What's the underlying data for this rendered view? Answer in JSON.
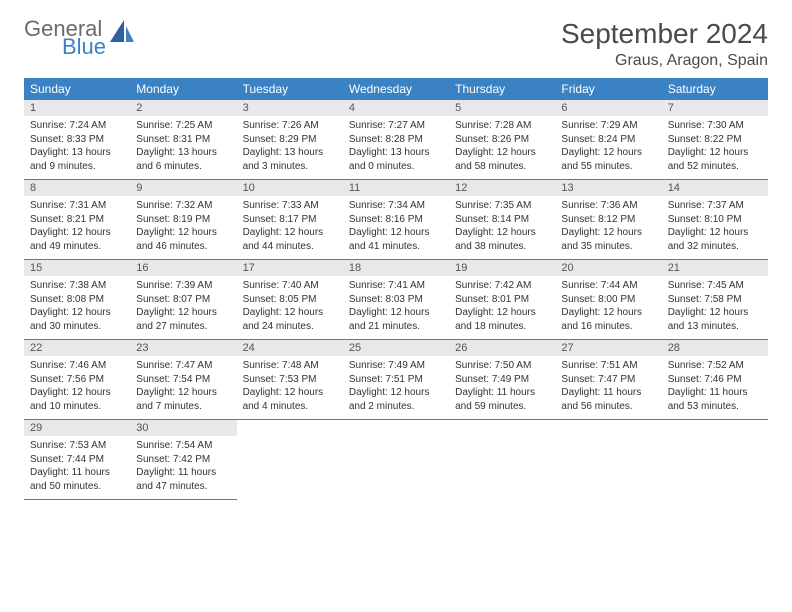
{
  "brand": {
    "part1": "General",
    "part2": "Blue"
  },
  "title": "September 2024",
  "location": "Graus, Aragon, Spain",
  "colors": {
    "header_bg": "#3b82c4",
    "header_text": "#ffffff",
    "daynum_bg": "#e8e8e8",
    "daynum_text": "#555555",
    "cell_text": "#333333",
    "rule": "#3b82c4",
    "brand_gray": "#6b6b6b",
    "brand_blue": "#3b82c4",
    "background": "#ffffff"
  },
  "typography": {
    "title_fontsize": 28,
    "location_fontsize": 16,
    "header_fontsize": 12,
    "daynum_fontsize": 11,
    "cell_fontsize": 10
  },
  "weekdays": [
    "Sunday",
    "Monday",
    "Tuesday",
    "Wednesday",
    "Thursday",
    "Friday",
    "Saturday"
  ],
  "weeks": [
    [
      {
        "day": "1",
        "sunrise": "Sunrise: 7:24 AM",
        "sunset": "Sunset: 8:33 PM",
        "daylight1": "Daylight: 13 hours",
        "daylight2": "and 9 minutes."
      },
      {
        "day": "2",
        "sunrise": "Sunrise: 7:25 AM",
        "sunset": "Sunset: 8:31 PM",
        "daylight1": "Daylight: 13 hours",
        "daylight2": "and 6 minutes."
      },
      {
        "day": "3",
        "sunrise": "Sunrise: 7:26 AM",
        "sunset": "Sunset: 8:29 PM",
        "daylight1": "Daylight: 13 hours",
        "daylight2": "and 3 minutes."
      },
      {
        "day": "4",
        "sunrise": "Sunrise: 7:27 AM",
        "sunset": "Sunset: 8:28 PM",
        "daylight1": "Daylight: 13 hours",
        "daylight2": "and 0 minutes."
      },
      {
        "day": "5",
        "sunrise": "Sunrise: 7:28 AM",
        "sunset": "Sunset: 8:26 PM",
        "daylight1": "Daylight: 12 hours",
        "daylight2": "and 58 minutes."
      },
      {
        "day": "6",
        "sunrise": "Sunrise: 7:29 AM",
        "sunset": "Sunset: 8:24 PM",
        "daylight1": "Daylight: 12 hours",
        "daylight2": "and 55 minutes."
      },
      {
        "day": "7",
        "sunrise": "Sunrise: 7:30 AM",
        "sunset": "Sunset: 8:22 PM",
        "daylight1": "Daylight: 12 hours",
        "daylight2": "and 52 minutes."
      }
    ],
    [
      {
        "day": "8",
        "sunrise": "Sunrise: 7:31 AM",
        "sunset": "Sunset: 8:21 PM",
        "daylight1": "Daylight: 12 hours",
        "daylight2": "and 49 minutes."
      },
      {
        "day": "9",
        "sunrise": "Sunrise: 7:32 AM",
        "sunset": "Sunset: 8:19 PM",
        "daylight1": "Daylight: 12 hours",
        "daylight2": "and 46 minutes."
      },
      {
        "day": "10",
        "sunrise": "Sunrise: 7:33 AM",
        "sunset": "Sunset: 8:17 PM",
        "daylight1": "Daylight: 12 hours",
        "daylight2": "and 44 minutes."
      },
      {
        "day": "11",
        "sunrise": "Sunrise: 7:34 AM",
        "sunset": "Sunset: 8:16 PM",
        "daylight1": "Daylight: 12 hours",
        "daylight2": "and 41 minutes."
      },
      {
        "day": "12",
        "sunrise": "Sunrise: 7:35 AM",
        "sunset": "Sunset: 8:14 PM",
        "daylight1": "Daylight: 12 hours",
        "daylight2": "and 38 minutes."
      },
      {
        "day": "13",
        "sunrise": "Sunrise: 7:36 AM",
        "sunset": "Sunset: 8:12 PM",
        "daylight1": "Daylight: 12 hours",
        "daylight2": "and 35 minutes."
      },
      {
        "day": "14",
        "sunrise": "Sunrise: 7:37 AM",
        "sunset": "Sunset: 8:10 PM",
        "daylight1": "Daylight: 12 hours",
        "daylight2": "and 32 minutes."
      }
    ],
    [
      {
        "day": "15",
        "sunrise": "Sunrise: 7:38 AM",
        "sunset": "Sunset: 8:08 PM",
        "daylight1": "Daylight: 12 hours",
        "daylight2": "and 30 minutes."
      },
      {
        "day": "16",
        "sunrise": "Sunrise: 7:39 AM",
        "sunset": "Sunset: 8:07 PM",
        "daylight1": "Daylight: 12 hours",
        "daylight2": "and 27 minutes."
      },
      {
        "day": "17",
        "sunrise": "Sunrise: 7:40 AM",
        "sunset": "Sunset: 8:05 PM",
        "daylight1": "Daylight: 12 hours",
        "daylight2": "and 24 minutes."
      },
      {
        "day": "18",
        "sunrise": "Sunrise: 7:41 AM",
        "sunset": "Sunset: 8:03 PM",
        "daylight1": "Daylight: 12 hours",
        "daylight2": "and 21 minutes."
      },
      {
        "day": "19",
        "sunrise": "Sunrise: 7:42 AM",
        "sunset": "Sunset: 8:01 PM",
        "daylight1": "Daylight: 12 hours",
        "daylight2": "and 18 minutes."
      },
      {
        "day": "20",
        "sunrise": "Sunrise: 7:44 AM",
        "sunset": "Sunset: 8:00 PM",
        "daylight1": "Daylight: 12 hours",
        "daylight2": "and 16 minutes."
      },
      {
        "day": "21",
        "sunrise": "Sunrise: 7:45 AM",
        "sunset": "Sunset: 7:58 PM",
        "daylight1": "Daylight: 12 hours",
        "daylight2": "and 13 minutes."
      }
    ],
    [
      {
        "day": "22",
        "sunrise": "Sunrise: 7:46 AM",
        "sunset": "Sunset: 7:56 PM",
        "daylight1": "Daylight: 12 hours",
        "daylight2": "and 10 minutes."
      },
      {
        "day": "23",
        "sunrise": "Sunrise: 7:47 AM",
        "sunset": "Sunset: 7:54 PM",
        "daylight1": "Daylight: 12 hours",
        "daylight2": "and 7 minutes."
      },
      {
        "day": "24",
        "sunrise": "Sunrise: 7:48 AM",
        "sunset": "Sunset: 7:53 PM",
        "daylight1": "Daylight: 12 hours",
        "daylight2": "and 4 minutes."
      },
      {
        "day": "25",
        "sunrise": "Sunrise: 7:49 AM",
        "sunset": "Sunset: 7:51 PM",
        "daylight1": "Daylight: 12 hours",
        "daylight2": "and 2 minutes."
      },
      {
        "day": "26",
        "sunrise": "Sunrise: 7:50 AM",
        "sunset": "Sunset: 7:49 PM",
        "daylight1": "Daylight: 11 hours",
        "daylight2": "and 59 minutes."
      },
      {
        "day": "27",
        "sunrise": "Sunrise: 7:51 AM",
        "sunset": "Sunset: 7:47 PM",
        "daylight1": "Daylight: 11 hours",
        "daylight2": "and 56 minutes."
      },
      {
        "day": "28",
        "sunrise": "Sunrise: 7:52 AM",
        "sunset": "Sunset: 7:46 PM",
        "daylight1": "Daylight: 11 hours",
        "daylight2": "and 53 minutes."
      }
    ],
    [
      {
        "day": "29",
        "sunrise": "Sunrise: 7:53 AM",
        "sunset": "Sunset: 7:44 PM",
        "daylight1": "Daylight: 11 hours",
        "daylight2": "and 50 minutes."
      },
      {
        "day": "30",
        "sunrise": "Sunrise: 7:54 AM",
        "sunset": "Sunset: 7:42 PM",
        "daylight1": "Daylight: 11 hours",
        "daylight2": "and 47 minutes."
      },
      null,
      null,
      null,
      null,
      null
    ]
  ]
}
